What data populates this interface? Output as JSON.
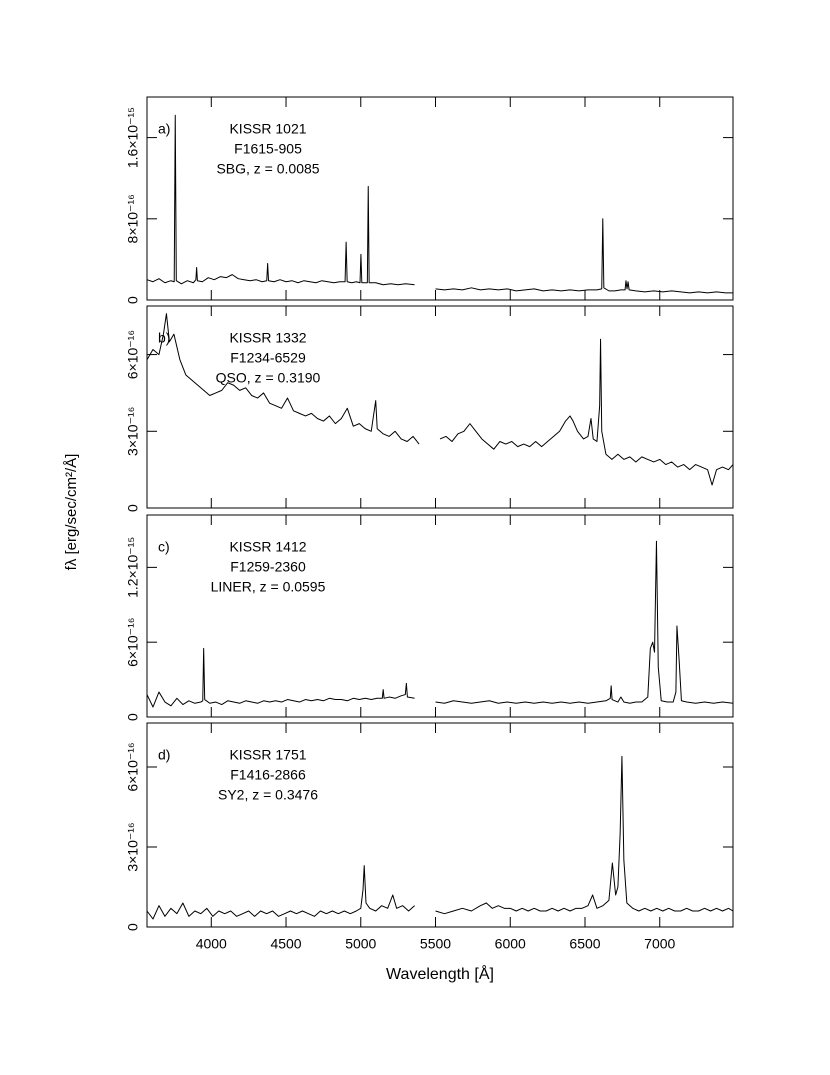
{
  "xlabel": "Wavelength [Å]",
  "ylabel": "fλ [erg/sec/cm²/Å]",
  "chart_data": [
    {
      "type": "line",
      "panel": "a)",
      "annotations": [
        "KISSR 1021",
        "F1615-905",
        "SBG, z = 0.0085"
      ],
      "color": "#000000",
      "xlim": [
        3570,
        7490
      ],
      "xticks": [
        4000,
        4500,
        5000,
        5500,
        6000,
        6500,
        7000
      ],
      "ylim": [
        0,
        2e-15
      ],
      "yticks": [
        0,
        {
          "value": 8e-16,
          "label": "8×10⁻¹⁶"
        },
        {
          "value": 1.6e-15,
          "label": "1.6×10⁻¹⁵"
        }
      ],
      "x": [
        3570,
        3610,
        3650,
        3690,
        3730,
        3752,
        3759,
        3766,
        3800,
        3840,
        3880,
        3897,
        3902,
        3907,
        3940,
        3980,
        4020,
        4060,
        4100,
        4140,
        4180,
        4220,
        4260,
        4300,
        4340,
        4371,
        4377,
        4383,
        4420,
        4460,
        4500,
        4540,
        4580,
        4620,
        4660,
        4700,
        4740,
        4780,
        4820,
        4860,
        4895,
        4902,
        4909,
        4940,
        4970,
        4995,
        5001,
        5007,
        5044,
        5050,
        5056,
        5100,
        5150,
        5200,
        5250,
        5300,
        5360,
        5440,
        5500,
        5560,
        5620,
        5680,
        5740,
        5800,
        5860,
        5920,
        5980,
        6040,
        6100,
        6160,
        6220,
        6280,
        6340,
        6400,
        6460,
        6520,
        6580,
        6612,
        6619,
        6626,
        6660,
        6700,
        6740,
        6768,
        6774,
        6781,
        6788,
        6795,
        6840,
        6900,
        6960,
        7020,
        7080,
        7140,
        7200,
        7260,
        7320,
        7380,
        7440,
        7490
      ],
      "values": [
        2e-16,
        1.8e-16,
        2.1e-16,
        1.7e-16,
        1.9e-16,
        1.8e-16,
        1.82e-15,
        1.9e-16,
        1.6e-16,
        1.9e-16,
        1.7e-16,
        2e-16,
        3.2e-16,
        1.9e-16,
        1.8e-16,
        2.2e-16,
        2e-16,
        2.3e-16,
        2.2e-16,
        2.5e-16,
        2.1e-16,
        2e-16,
        1.9e-16,
        2e-16,
        1.8e-16,
        1.9e-16,
        3.6e-16,
        1.9e-16,
        1.8e-16,
        2e-16,
        1.8e-16,
        1.9e-16,
        1.7e-16,
        1.9e-16,
        1.8e-16,
        1.7e-16,
        1.9e-16,
        1.8e-16,
        1.7e-16,
        1.8e-16,
        1.8e-16,
        5.7e-16,
        1.8e-16,
        1.7e-16,
        1.8e-16,
        1.7e-16,
        4.5e-16,
        1.7e-16,
        1.7e-16,
        1.12e-15,
        1.7e-16,
        1.7e-16,
        1.5e-16,
        1.6e-16,
        1.5e-16,
        1.6e-16,
        1.5e-16,
        null,
        1.1e-16,
        1e-16,
        1.1e-16,
        1e-16,
        1.2e-16,
        1e-16,
        1.1e-16,
        1e-16,
        1.1e-16,
        9e-17,
        1e-16,
        1.1e-16,
        9e-17,
        1e-16,
        9e-17,
        1e-16,
        9e-17,
        1e-16,
        1e-16,
        1.1e-16,
        8e-16,
        1.2e-16,
        9e-17,
        9e-17,
        1e-16,
        1e-16,
        1.9e-16,
        1.1e-16,
        1.8e-16,
        1e-16,
        9e-17,
        8e-17,
        9e-17,
        8e-17,
        9e-17,
        8e-17,
        7e-17,
        8e-17,
        7e-17,
        8e-17,
        7e-17,
        7e-17
      ]
    },
    {
      "type": "line",
      "panel": "b)",
      "annotations": [
        "KISSR 1332",
        "F1234-6529",
        "QSO, z = 0.3190"
      ],
      "color": "#000000",
      "xlim": [
        3570,
        7490
      ],
      "xticks": [
        4000,
        4500,
        5000,
        5500,
        6000,
        6500,
        7000
      ],
      "ylim": [
        0,
        7.9e-16
      ],
      "yticks": [
        0,
        {
          "value": 3e-16,
          "label": "3×10⁻¹⁶"
        },
        {
          "value": 6e-16,
          "label": "6×10⁻¹⁶"
        }
      ],
      "x": [
        3570,
        3610,
        3650,
        3680,
        3700,
        3720,
        3750,
        3790,
        3830,
        3870,
        3910,
        3950,
        3990,
        4030,
        4070,
        4110,
        4150,
        4190,
        4230,
        4270,
        4310,
        4350,
        4390,
        4430,
        4470,
        4510,
        4550,
        4590,
        4630,
        4670,
        4710,
        4750,
        4790,
        4830,
        4870,
        4910,
        4950,
        4990,
        5030,
        5070,
        5100,
        5110,
        5150,
        5190,
        5230,
        5270,
        5310,
        5350,
        5390,
        5450,
        5530,
        5570,
        5610,
        5650,
        5690,
        5730,
        5770,
        5810,
        5850,
        5890,
        5930,
        5970,
        6010,
        6050,
        6090,
        6130,
        6170,
        6210,
        6250,
        6290,
        6330,
        6370,
        6400,
        6420,
        6450,
        6490,
        6520,
        6540,
        6555,
        6580,
        6598,
        6604,
        6612,
        6640,
        6680,
        6720,
        6760,
        6800,
        6840,
        6880,
        6920,
        6960,
        7000,
        7040,
        7080,
        7120,
        7160,
        7200,
        7240,
        7280,
        7320,
        7350,
        7380,
        7420,
        7460,
        7490
      ],
      "values": [
        5.8e-16,
        6.2e-16,
        6e-16,
        6.8e-16,
        7.6e-16,
        6.5e-16,
        6.8e-16,
        5.8e-16,
        5.2e-16,
        5e-16,
        4.8e-16,
        4.6e-16,
        4.4e-16,
        4.5e-16,
        4.6e-16,
        4.9e-16,
        4.8e-16,
        4.6e-16,
        4.7e-16,
        4.4e-16,
        4.3e-16,
        4.5e-16,
        4.1e-16,
        4e-16,
        3.9e-16,
        4.3e-16,
        3.8e-16,
        3.7e-16,
        3.6e-16,
        3.7e-16,
        3.5e-16,
        3.4e-16,
        3.6e-16,
        3.3e-16,
        3.5e-16,
        3.9e-16,
        3.2e-16,
        3.3e-16,
        3.1e-16,
        3e-16,
        4.2e-16,
        3.1e-16,
        2.9e-16,
        2.8e-16,
        3e-16,
        2.7e-16,
        2.6e-16,
        2.8e-16,
        2.5e-16,
        null,
        2.7e-16,
        2.8e-16,
        2.6e-16,
        2.9e-16,
        3e-16,
        3.3e-16,
        3e-16,
        2.7e-16,
        2.5e-16,
        2.3e-16,
        2.6e-16,
        2.5e-16,
        2.6e-16,
        2.4e-16,
        2.5e-16,
        2.4e-16,
        2.6e-16,
        2.4e-16,
        2.6e-16,
        2.8e-16,
        3e-16,
        3.4e-16,
        3.6e-16,
        3.4e-16,
        3e-16,
        2.7e-16,
        2.8e-16,
        3.5e-16,
        2.7e-16,
        2.6e-16,
        4e-16,
        6.6e-16,
        3e-16,
        2.1e-16,
        1.9e-16,
        2.1e-16,
        1.9e-16,
        2e-16,
        1.8e-16,
        2e-16,
        1.9e-16,
        1.8e-16,
        1.9e-16,
        1.7e-16,
        1.8e-16,
        1.6e-16,
        1.7e-16,
        1.5e-16,
        1.7e-16,
        1.6e-16,
        1.5e-16,
        9e-17,
        1.5e-16,
        1.6e-16,
        1.5e-16,
        1.7e-16
      ]
    },
    {
      "type": "line",
      "panel": "c)",
      "annotations": [
        "KISSR 1412",
        "F1259-2360",
        "LINER, z = 0.0595"
      ],
      "color": "#000000",
      "xlim": [
        3570,
        7490
      ],
      "xticks": [
        4000,
        4500,
        5000,
        5500,
        6000,
        6500,
        7000
      ],
      "ylim": [
        0,
        1.62e-15
      ],
      "yticks": [
        0,
        {
          "value": 6e-16,
          "label": "6×10⁻¹⁶"
        },
        {
          "value": 1.2e-15,
          "label": "1.2×10⁻¹⁵"
        }
      ],
      "x": [
        3570,
        3610,
        3650,
        3690,
        3730,
        3770,
        3810,
        3850,
        3890,
        3930,
        3943,
        3949,
        3956,
        3990,
        4030,
        4070,
        4110,
        4150,
        4190,
        4230,
        4270,
        4310,
        4350,
        4390,
        4430,
        4470,
        4510,
        4550,
        4590,
        4630,
        4670,
        4710,
        4750,
        4790,
        4830,
        4870,
        4910,
        4950,
        4990,
        5030,
        5070,
        5110,
        5144,
        5150,
        5156,
        5190,
        5230,
        5270,
        5298,
        5305,
        5312,
        5360,
        5440,
        5500,
        5560,
        5620,
        5680,
        5740,
        5800,
        5860,
        5920,
        5980,
        6040,
        6100,
        6160,
        6220,
        6280,
        6340,
        6400,
        6460,
        6520,
        6580,
        6640,
        6669,
        6675,
        6681,
        6720,
        6740,
        6760,
        6800,
        6840,
        6880,
        6920,
        6937,
        6953,
        6965,
        6978,
        6990,
        7010,
        7050,
        7090,
        7108,
        7115,
        7130,
        7145,
        7180,
        7240,
        7300,
        7360,
        7420,
        7490
      ],
      "values": [
        1.8e-16,
        8e-17,
        2e-16,
        1.2e-16,
        9e-17,
        1.5e-16,
        1e-16,
        1.3e-16,
        1.1e-16,
        1.2e-16,
        1.3e-16,
        5.5e-16,
        1.4e-16,
        1.1e-16,
        1.2e-16,
        1e-16,
        1.3e-16,
        1.2e-16,
        1.1e-16,
        1.3e-16,
        1.2e-16,
        1.1e-16,
        1.3e-16,
        1.2e-16,
        1.3e-16,
        1.2e-16,
        1.4e-16,
        1.3e-16,
        1.2e-16,
        1.4e-16,
        1.3e-16,
        1.4e-16,
        1.3e-16,
        1.5e-16,
        1.4e-16,
        1.4e-16,
        1.3e-16,
        1.5e-16,
        1.4e-16,
        1.5e-16,
        1.4e-16,
        1.5e-16,
        1.5e-16,
        2.2e-16,
        1.5e-16,
        1.6e-16,
        1.5e-16,
        1.7e-16,
        1.8e-16,
        2.7e-16,
        1.6e-16,
        1.5e-16,
        null,
        1.2e-16,
        1.1e-16,
        1.3e-16,
        1.2e-16,
        1.1e-16,
        1.2e-16,
        1.3e-16,
        1.1e-16,
        1.2e-16,
        1.1e-16,
        1.2e-16,
        1.1e-16,
        1.2e-16,
        1.1e-16,
        1.2e-16,
        1.1e-16,
        1.2e-16,
        1.1e-16,
        1.2e-16,
        1.3e-16,
        1.5e-16,
        2.5e-16,
        1.4e-16,
        1.2e-16,
        1.6e-16,
        1.2e-16,
        1.1e-16,
        1.2e-16,
        1.2e-16,
        1.6e-16,
        5.5e-16,
        6e-16,
        5.2e-16,
        1.41e-15,
        4e-16,
        1.3e-16,
        1.2e-16,
        1.2e-16,
        2e-16,
        7.3e-16,
        4.5e-16,
        1.3e-16,
        1.2e-16,
        1.1e-16,
        1.2e-16,
        1.1e-16,
        1.2e-16,
        1.1e-16
      ]
    },
    {
      "type": "line",
      "panel": "d)",
      "annotations": [
        "KISSR 1751",
        "F1416-2866",
        "SY2, z = 0.3476"
      ],
      "color": "#000000",
      "xlim": [
        3570,
        7490
      ],
      "xticks": [
        4000,
        4500,
        5000,
        5500,
        6000,
        6500,
        7000
      ],
      "ylim": [
        0,
        7.65e-16
      ],
      "yticks": [
        0,
        {
          "value": 3e-16,
          "label": "3×10⁻¹⁶"
        },
        {
          "value": 6e-16,
          "label": "6×10⁻¹⁶"
        }
      ],
      "x": [
        3570,
        3610,
        3650,
        3690,
        3730,
        3770,
        3810,
        3850,
        3890,
        3930,
        3970,
        4010,
        4050,
        4090,
        4130,
        4170,
        4210,
        4250,
        4290,
        4330,
        4370,
        4410,
        4450,
        4490,
        4530,
        4570,
        4610,
        4650,
        4690,
        4730,
        4770,
        4810,
        4850,
        4890,
        4930,
        4970,
        5000,
        5015,
        5023,
        5035,
        5060,
        5100,
        5140,
        5180,
        5214,
        5240,
        5280,
        5320,
        5360,
        5440,
        5500,
        5560,
        5620,
        5680,
        5740,
        5800,
        5840,
        5880,
        5920,
        5960,
        6000,
        6040,
        6080,
        6120,
        6160,
        6200,
        6240,
        6280,
        6320,
        6360,
        6400,
        6440,
        6480,
        6520,
        6551,
        6580,
        6620,
        6660,
        6683,
        6705,
        6720,
        6735,
        6747,
        6760,
        6780,
        6820,
        6860,
        6900,
        6940,
        6980,
        7020,
        7060,
        7100,
        7140,
        7180,
        7220,
        7260,
        7300,
        7340,
        7380,
        7420,
        7460,
        7490
      ],
      "values": [
        6e-17,
        3e-17,
        8e-17,
        4e-17,
        7e-17,
        5e-17,
        9e-17,
        4e-17,
        6e-17,
        5e-17,
        7e-17,
        4e-17,
        6e-17,
        5e-17,
        6e-17,
        4e-17,
        5e-17,
        6e-17,
        4e-17,
        6e-17,
        5e-17,
        6e-17,
        4e-17,
        5e-17,
        6e-17,
        5e-17,
        6e-17,
        5e-17,
        4e-17,
        6e-17,
        5e-17,
        6e-17,
        5e-17,
        6e-17,
        5e-17,
        6e-17,
        7e-17,
        1.4e-16,
        2.3e-16,
        9e-17,
        7e-17,
        6e-17,
        8e-17,
        7e-17,
        1.2e-16,
        7e-17,
        8e-17,
        6e-17,
        8e-17,
        null,
        6e-17,
        5e-17,
        6e-17,
        7e-17,
        6e-17,
        8e-17,
        9e-17,
        7e-17,
        8e-17,
        7e-17,
        7e-17,
        6e-17,
        7e-17,
        6e-17,
        7e-17,
        6e-17,
        6e-17,
        7e-17,
        6e-17,
        7e-17,
        6e-17,
        7e-17,
        7e-17,
        8e-17,
        1.2e-16,
        7e-17,
        8e-17,
        1e-16,
        2.4e-16,
        1.2e-16,
        1.5e-16,
        3.5e-16,
        6.4e-16,
        2.5e-16,
        9e-17,
        7e-17,
        6e-17,
        7e-17,
        6e-17,
        7e-17,
        6e-17,
        7e-17,
        6e-17,
        6e-17,
        7e-17,
        6e-17,
        6e-17,
        7e-17,
        6e-17,
        7e-17,
        6e-17,
        7e-17,
        6e-17
      ]
    }
  ]
}
